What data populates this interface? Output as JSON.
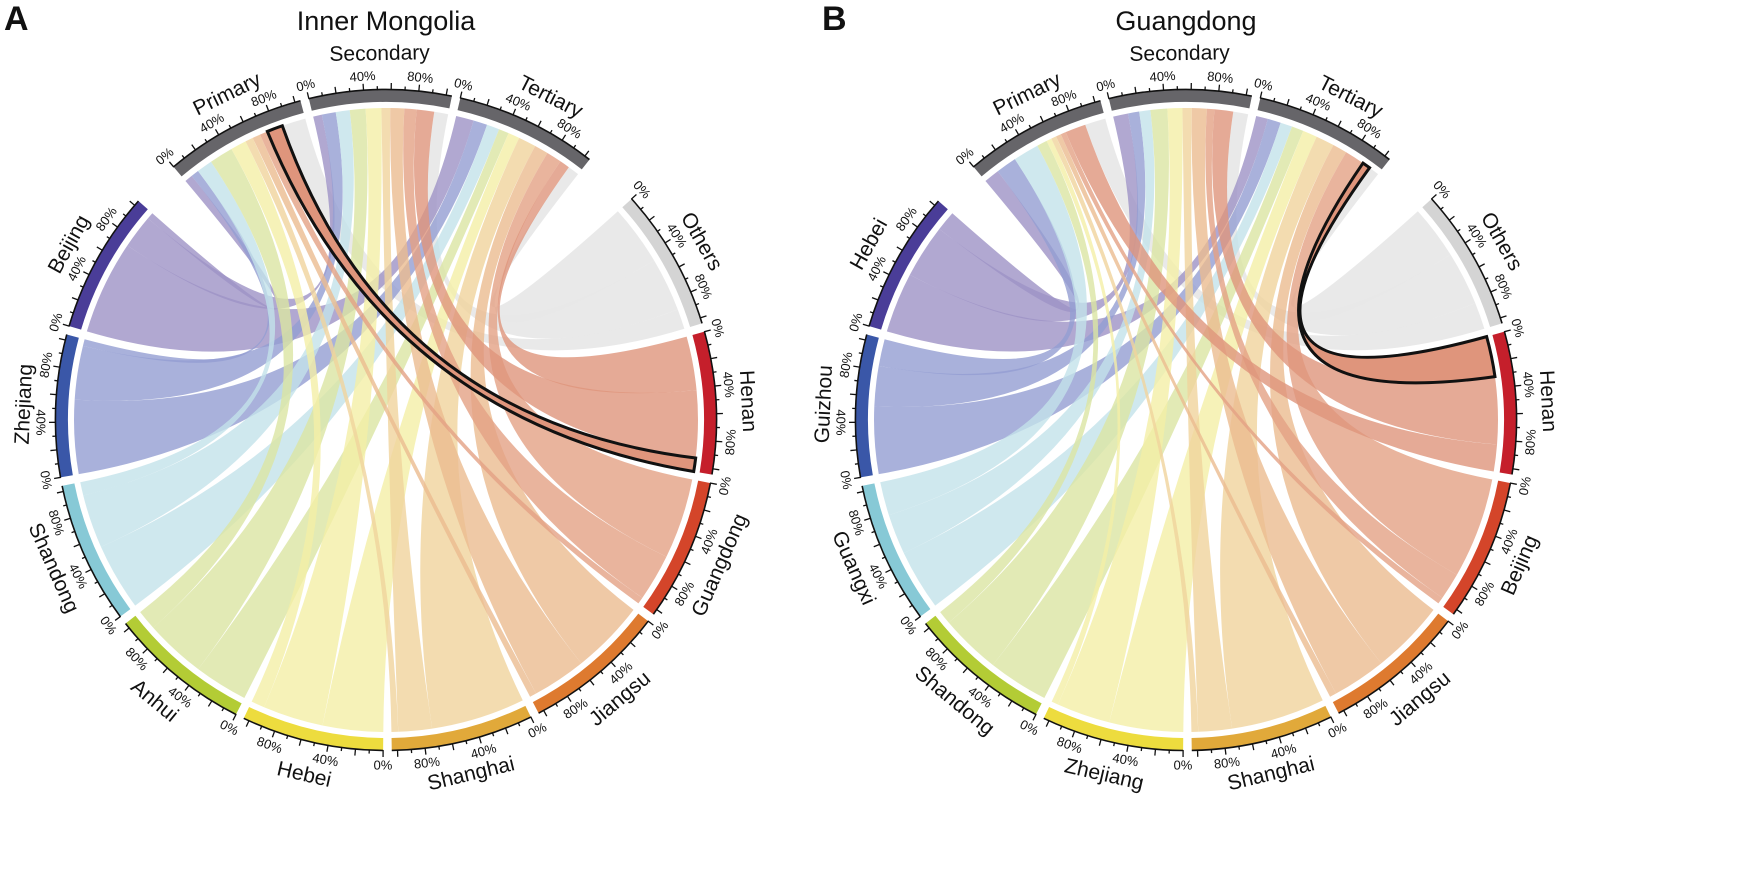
{
  "chart_data": [
    {
      "type": "chord",
      "panel": "A",
      "title": "Inner Mongolia",
      "sector_color": "#666569",
      "sectors": [
        "Primary",
        "Secondary",
        "Tertiary"
      ],
      "tick_labels": [
        "0%",
        "40%",
        "80%"
      ],
      "highlight": {
        "origin": "Henan",
        "sector": "Primary"
      },
      "origins": [
        {
          "name": "Beijing",
          "color": "#4a3d98",
          "ribbon": "#9d92c6",
          "shares": {
            "Tertiary": 70,
            "Secondary": 25,
            "Primary": 5
          }
        },
        {
          "name": "Zhejiang",
          "color": "#3a57a8",
          "ribbon": "#939dd2",
          "shares": {
            "Tertiary": 55,
            "Secondary": 40,
            "Primary": 5
          }
        },
        {
          "name": "Shandong",
          "color": "#87c9d6",
          "ribbon": "#c3e2ea",
          "shares": {
            "Tertiary": 50,
            "Secondary": 40,
            "Primary": 10
          }
        },
        {
          "name": "Anhui",
          "color": "#b3cc35",
          "ribbon": "#dbe5a3",
          "shares": {
            "Tertiary": 40,
            "Secondary": 45,
            "Primary": 15
          }
        },
        {
          "name": "Hebei",
          "color": "#eddc3e",
          "ribbon": "#f4efa6",
          "shares": {
            "Tertiary": 45,
            "Secondary": 45,
            "Primary": 10
          }
        },
        {
          "name": "Shanghai",
          "color": "#e1a93a",
          "ribbon": "#f0d39c",
          "shares": {
            "Tertiary": 70,
            "Secondary": 25,
            "Primary": 5
          }
        },
        {
          "name": "Jiangsu",
          "color": "#de7a2f",
          "ribbon": "#ebbb90",
          "shares": {
            "Tertiary": 55,
            "Secondary": 40,
            "Primary": 5
          }
        },
        {
          "name": "Guangdong",
          "color": "#d4452a",
          "ribbon": "#e4a184",
          "shares": {
            "Tertiary": 60,
            "Secondary": 35,
            "Primary": 5
          }
        },
        {
          "name": "Henan",
          "color": "#c51f2b",
          "ribbon": "#df957c",
          "shares": {
            "Tertiary": 40,
            "Secondary": 50,
            "Primary": 10
          }
        },
        {
          "name": "Others",
          "color": "#d4d4d4",
          "ribbon": "#e8e8e8",
          "shares": {
            "Tertiary": 45,
            "Secondary": 40,
            "Primary": 15
          }
        }
      ]
    },
    {
      "type": "chord",
      "panel": "B",
      "title": "Guangdong",
      "sector_color": "#666569",
      "sectors": [
        "Primary",
        "Secondary",
        "Tertiary"
      ],
      "tick_labels": [
        "0%",
        "40%",
        "80%"
      ],
      "highlight": {
        "origin": "Henan",
        "sector": "Tertiary"
      },
      "origins": [
        {
          "name": "Hebei",
          "color": "#4a3d98",
          "ribbon": "#9d92c6",
          "shares": {
            "Tertiary": 45,
            "Secondary": 40,
            "Primary": 15
          }
        },
        {
          "name": "Guizhou",
          "color": "#3a57a8",
          "ribbon": "#939dd2",
          "shares": {
            "Tertiary": 50,
            "Secondary": 30,
            "Primary": 20
          }
        },
        {
          "name": "Guangxi",
          "color": "#87c9d6",
          "ribbon": "#c3e2ea",
          "shares": {
            "Tertiary": 45,
            "Secondary": 30,
            "Primary": 25
          }
        },
        {
          "name": "Shandong",
          "color": "#b3cc35",
          "ribbon": "#dbe5a3",
          "shares": {
            "Tertiary": 45,
            "Secondary": 45,
            "Primary": 10
          }
        },
        {
          "name": "Zhejiang",
          "color": "#eddc3e",
          "ribbon": "#f4efa6",
          "shares": {
            "Tertiary": 55,
            "Secondary": 40,
            "Primary": 5
          }
        },
        {
          "name": "Shanghai",
          "color": "#e1a93a",
          "ribbon": "#f0d39c",
          "shares": {
            "Tertiary": 70,
            "Secondary": 25,
            "Primary": 5
          }
        },
        {
          "name": "Jiangsu",
          "color": "#de7a2f",
          "ribbon": "#ebbb90",
          "shares": {
            "Tertiary": 55,
            "Secondary": 40,
            "Primary": 5
          }
        },
        {
          "name": "Beijing",
          "color": "#d4452a",
          "ribbon": "#e4a184",
          "shares": {
            "Tertiary": 75,
            "Secondary": 20,
            "Primary": 5
          }
        },
        {
          "name": "Henan",
          "color": "#c51f2b",
          "ribbon": "#df957c",
          "shares": {
            "Tertiary": 30,
            "Secondary": 50,
            "Primary": 20
          }
        },
        {
          "name": "Others",
          "color": "#d4d4d4",
          "ribbon": "#e8e8e8",
          "shares": {
            "Tertiary": 40,
            "Secondary": 40,
            "Primary": 20
          }
        }
      ]
    }
  ]
}
